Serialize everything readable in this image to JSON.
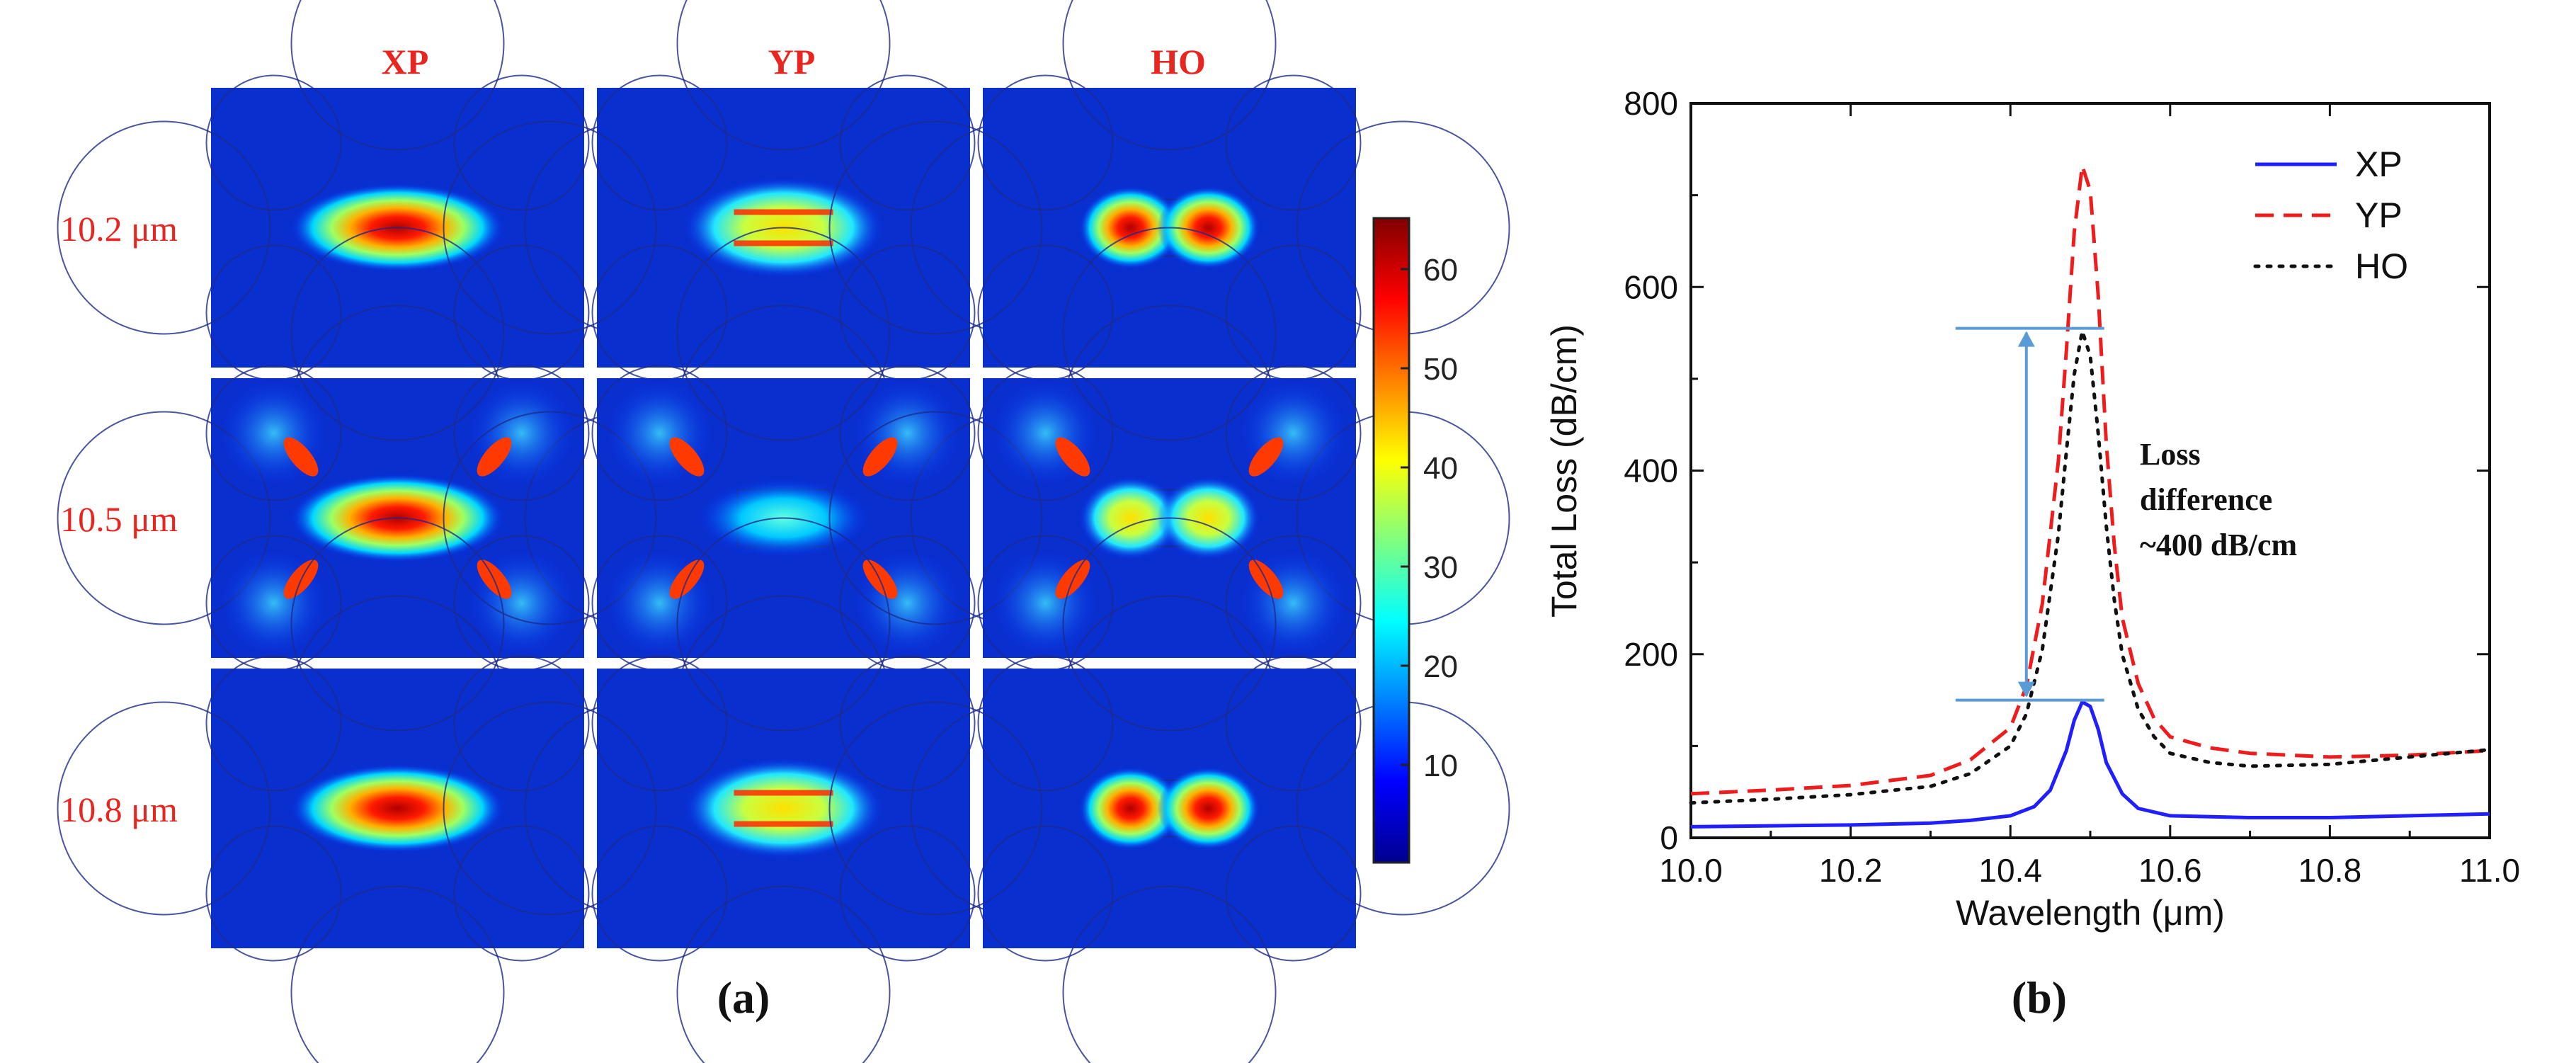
{
  "panel_a": {
    "caption": "(a)",
    "column_headers": [
      "XP",
      "YP",
      "HO"
    ],
    "row_labels": [
      "10.2 μm",
      "10.5 μm",
      "10.8 μm"
    ],
    "label_color": "#e8251f",
    "colorbar": {
      "ticks": [
        "60",
        "50",
        "40",
        "30",
        "20",
        "10"
      ],
      "range": [
        0,
        65
      ]
    }
  },
  "panel_b": {
    "caption": "(b)",
    "annotation": [
      "Loss",
      "difference",
      "~400 dB/cm"
    ],
    "annotation_arrow": {
      "from": 150,
      "to": 555,
      "x": 10.42
    }
  },
  "chart_data": {
    "type": "line",
    "xlabel": "Wavelength (μm)",
    "ylabel": "Total Loss (dB/cm)",
    "xlim": [
      10.0,
      11.0
    ],
    "ylim": [
      0,
      800
    ],
    "xticks": [
      "10.0",
      "10.2",
      "10.4",
      "10.6",
      "10.8",
      "11.0"
    ],
    "yticks": [
      "0",
      "200",
      "400",
      "600",
      "800"
    ],
    "legend_position": "top-right",
    "series": [
      {
        "name": "XP",
        "color": "#1f1fff",
        "dash": "solid",
        "x": [
          10.0,
          10.1,
          10.2,
          10.3,
          10.35,
          10.4,
          10.43,
          10.45,
          10.47,
          10.48,
          10.49,
          10.5,
          10.51,
          10.52,
          10.54,
          10.56,
          10.6,
          10.7,
          10.8,
          10.9,
          11.0
        ],
        "y": [
          12,
          13,
          14,
          16,
          19,
          24,
          34,
          52,
          95,
          128,
          148,
          143,
          118,
          82,
          48,
          32,
          24,
          22,
          22,
          24,
          26
        ]
      },
      {
        "name": "YP",
        "color": "#ee1c1c",
        "dash": "dash",
        "x": [
          10.0,
          10.1,
          10.2,
          10.3,
          10.35,
          10.4,
          10.42,
          10.44,
          10.46,
          10.47,
          10.48,
          10.49,
          10.5,
          10.51,
          10.52,
          10.53,
          10.54,
          10.56,
          10.58,
          10.6,
          10.65,
          10.7,
          10.8,
          10.9,
          11.0
        ],
        "y": [
          48,
          52,
          57,
          68,
          85,
          120,
          165,
          255,
          410,
          530,
          660,
          732,
          705,
          590,
          430,
          320,
          240,
          168,
          130,
          110,
          98,
          92,
          88,
          90,
          95
        ]
      },
      {
        "name": "HO",
        "color": "#111111",
        "dash": "dot",
        "x": [
          10.0,
          10.1,
          10.2,
          10.3,
          10.35,
          10.4,
          10.42,
          10.44,
          10.46,
          10.47,
          10.48,
          10.49,
          10.5,
          10.51,
          10.52,
          10.53,
          10.54,
          10.56,
          10.58,
          10.6,
          10.65,
          10.7,
          10.8,
          10.9,
          11.0
        ],
        "y": [
          38,
          42,
          47,
          56,
          70,
          100,
          135,
          205,
          330,
          420,
          505,
          552,
          525,
          440,
          340,
          260,
          200,
          140,
          110,
          92,
          82,
          78,
          80,
          88,
          96
        ]
      }
    ]
  }
}
